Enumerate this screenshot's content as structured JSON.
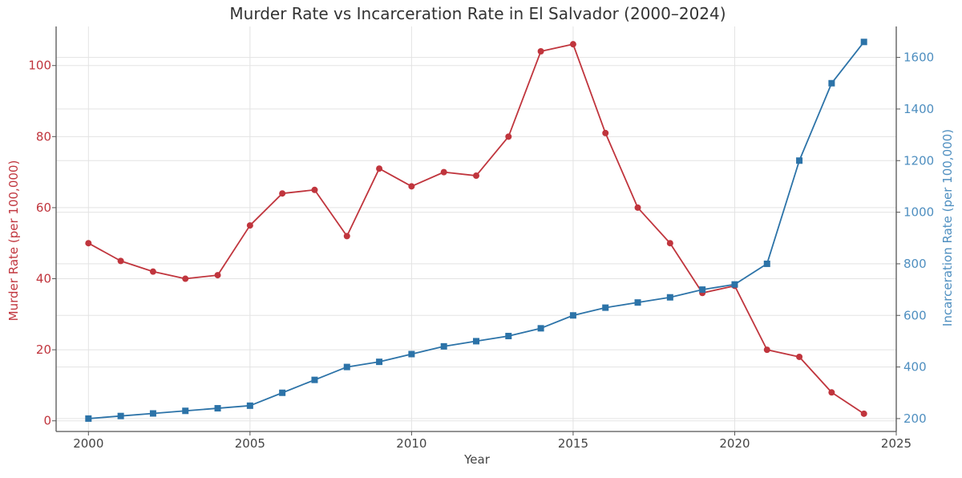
{
  "chart_data": {
    "type": "line",
    "title": "Murder Rate vs Incarceration Rate in El Salvador (2000–2024)",
    "xlabel": "Year",
    "ylabel": "Murder Rate (per 100,000)",
    "y2label": "Incarceration Rate (per 100,000)",
    "x": [
      2000,
      2001,
      2002,
      2003,
      2004,
      2005,
      2006,
      2007,
      2008,
      2009,
      2010,
      2011,
      2012,
      2013,
      2014,
      2015,
      2016,
      2017,
      2018,
      2019,
      2020,
      2021,
      2022,
      2023,
      2024
    ],
    "xlim": [
      1999,
      2025
    ],
    "xticks": [
      2000,
      2005,
      2010,
      2015,
      2020,
      2025
    ],
    "ylim": [
      -3,
      111
    ],
    "yticks": [
      0,
      20,
      40,
      60,
      80,
      100
    ],
    "y2lim": [
      150,
      1720
    ],
    "y2ticks": [
      200,
      400,
      600,
      800,
      1000,
      1200,
      1400,
      1600
    ],
    "grid": true,
    "series": [
      {
        "name": "Murder Rate",
        "axis": "left",
        "color": "#c0353d",
        "marker": "circle",
        "values": [
          50,
          45,
          42,
          40,
          41,
          55,
          64,
          65,
          52,
          71,
          66,
          70,
          69,
          80,
          104,
          106,
          81,
          60,
          50,
          36,
          38,
          20,
          18,
          8,
          2
        ]
      },
      {
        "name": "Incarceration Rate",
        "axis": "right",
        "color": "#2c73a8",
        "marker": "square",
        "values": [
          200,
          210,
          220,
          230,
          240,
          250,
          300,
          350,
          400,
          420,
          450,
          480,
          500,
          520,
          550,
          600,
          630,
          650,
          670,
          700,
          720,
          800,
          1200,
          1500,
          1660
        ]
      }
    ]
  }
}
